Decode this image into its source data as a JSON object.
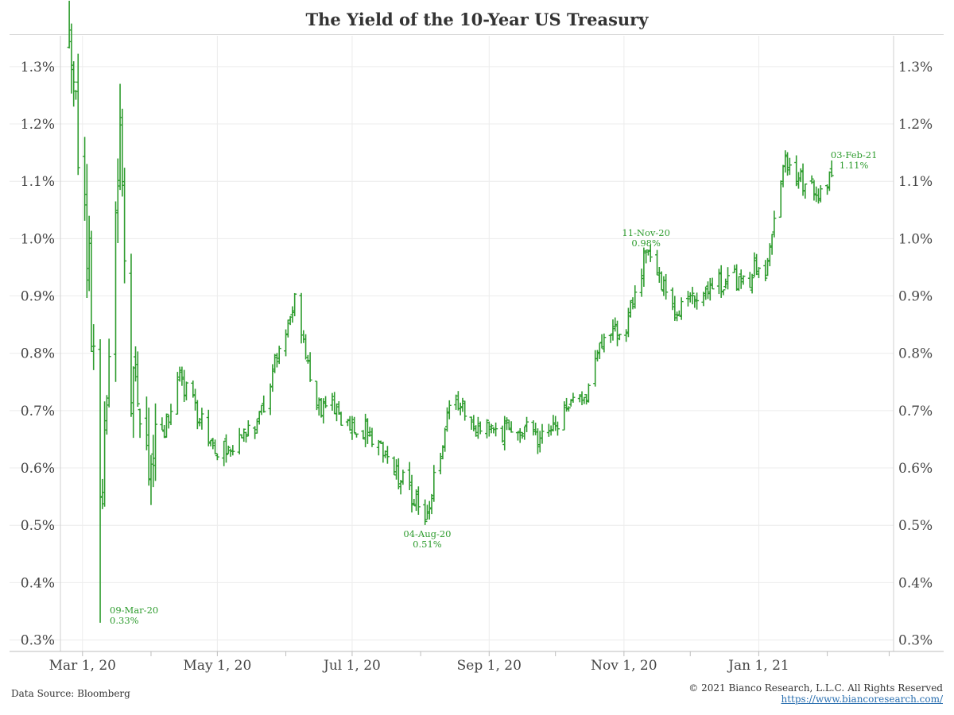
{
  "title": "The Yield of the 10-Year US Treasury",
  "footer": {
    "source": "Data Source: Bloomberg",
    "copyright": "© 2021 Bianco Research, L.L.C. All Rights Reserved",
    "url": "https://www.biancoresearch.com/"
  },
  "chart_data": {
    "type": "ohlc-bar",
    "color": "#2e9c2e",
    "title": "The Yield of the 10-Year US Treasury",
    "ylim": [
      0.28,
      1.34
    ],
    "yticks": [
      0.3,
      0.4,
      0.5,
      0.6,
      0.7,
      0.8,
      0.9,
      1.0,
      1.1,
      1.2,
      1.3
    ],
    "ytick_labels": [
      "0.3%",
      "0.4%",
      "0.5%",
      "0.6%",
      "0.7%",
      "0.8%",
      "0.9%",
      "1.0%",
      "1.1%",
      "1.2%",
      "1.3%"
    ],
    "xlim": [
      "2020-02-20",
      "2021-03-03"
    ],
    "xticks": [
      {
        "date": "2020-03-01",
        "label": "Mar 1, 20"
      },
      {
        "date": "2020-05-01",
        "label": "May 1, 20"
      },
      {
        "date": "2020-07-01",
        "label": "Jul 1, 20"
      },
      {
        "date": "2020-09-01",
        "label": "Sep 1, 20"
      },
      {
        "date": "2020-11-01",
        "label": "Nov 1, 20"
      },
      {
        "date": "2021-01-01",
        "label": "Jan 1, 21"
      }
    ],
    "x_minor_ticks": [
      "2020-04-01",
      "2020-06-01",
      "2020-08-01",
      "2020-10-01",
      "2020-12-01",
      "2021-02-01",
      "2021-03-01"
    ],
    "annotations": [
      {
        "date": "2020-03-09",
        "value": 0.33,
        "label": "09-Mar-20",
        "sublabel": "0.33%"
      },
      {
        "date": "2020-08-04",
        "value": 0.51,
        "label": "04-Aug-20",
        "sublabel": "0.51%"
      },
      {
        "date": "2020-11-11",
        "value": 0.98,
        "label": "11-Nov-20",
        "sublabel": "0.98%"
      },
      {
        "date": "2021-02-03",
        "value": 1.11,
        "label": "03-Feb-21",
        "sublabel": "1.11%"
      }
    ],
    "key_points": [
      {
        "date": "2020-02-24",
        "value": 1.37
      },
      {
        "date": "2020-03-03",
        "value": 0.99
      },
      {
        "date": "2020-03-09",
        "value": 0.54
      },
      {
        "date": "2020-03-18",
        "value": 1.18
      },
      {
        "date": "2020-03-23",
        "value": 0.76
      },
      {
        "date": "2020-04-01",
        "value": 0.59
      },
      {
        "date": "2020-04-14",
        "value": 0.76
      },
      {
        "date": "2020-05-01",
        "value": 0.62
      },
      {
        "date": "2020-05-20",
        "value": 0.68
      },
      {
        "date": "2020-06-05",
        "value": 0.9
      },
      {
        "date": "2020-06-15",
        "value": 0.71
      },
      {
        "date": "2020-07-01",
        "value": 0.68
      },
      {
        "date": "2020-07-15",
        "value": 0.63
      },
      {
        "date": "2020-08-04",
        "value": 0.51
      },
      {
        "date": "2020-08-14",
        "value": 0.71
      },
      {
        "date": "2020-09-01",
        "value": 0.67
      },
      {
        "date": "2020-09-25",
        "value": 0.66
      },
      {
        "date": "2020-10-15",
        "value": 0.73
      },
      {
        "date": "2020-10-23",
        "value": 0.84
      },
      {
        "date": "2020-11-02",
        "value": 0.85
      },
      {
        "date": "2020-11-11",
        "value": 0.98
      },
      {
        "date": "2020-11-25",
        "value": 0.88
      },
      {
        "date": "2020-12-10",
        "value": 0.91
      },
      {
        "date": "2021-01-05",
        "value": 0.95
      },
      {
        "date": "2021-01-12",
        "value": 1.13
      },
      {
        "date": "2021-01-29",
        "value": 1.07
      },
      {
        "date": "2021-02-03",
        "value": 1.11
      }
    ]
  }
}
